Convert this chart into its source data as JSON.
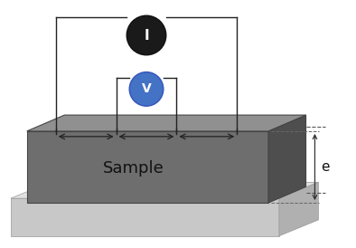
{
  "sample_front_color": "#6e6e6e",
  "sample_top_color": "#909090",
  "sample_right_color": "#4e4e4e",
  "base_front_color": "#c8c8c8",
  "base_top_color": "#e0e0e0",
  "base_right_color": "#b0b0b0",
  "I_color": "#1a1a1a",
  "V_color": "#4472c4",
  "line_color": "#222222",
  "sample_label": "Sample",
  "e_label": "e"
}
